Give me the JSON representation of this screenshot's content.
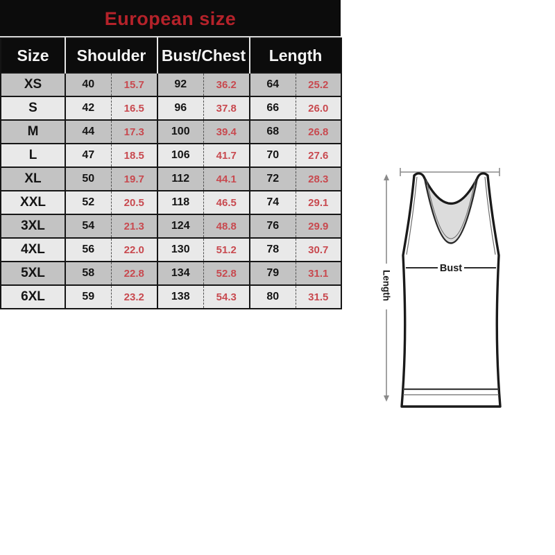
{
  "title": "European size",
  "chart_data": {
    "type": "table",
    "title": "European size",
    "columns": [
      "Size",
      "Shoulder",
      "Bust/Chest",
      "Length"
    ],
    "rows": [
      {
        "size": "XS",
        "shoulder_cm": "40",
        "shoulder_in": "15.7",
        "bust_cm": "92",
        "bust_in": "36.2",
        "length_cm": "64",
        "length_in": "25.2"
      },
      {
        "size": "S",
        "shoulder_cm": "42",
        "shoulder_in": "16.5",
        "bust_cm": "96",
        "bust_in": "37.8",
        "length_cm": "66",
        "length_in": "26.0"
      },
      {
        "size": "M",
        "shoulder_cm": "44",
        "shoulder_in": "17.3",
        "bust_cm": "100",
        "bust_in": "39.4",
        "length_cm": "68",
        "length_in": "26.8"
      },
      {
        "size": "L",
        "shoulder_cm": "47",
        "shoulder_in": "18.5",
        "bust_cm": "106",
        "bust_in": "41.7",
        "length_cm": "70",
        "length_in": "27.6"
      },
      {
        "size": "XL",
        "shoulder_cm": "50",
        "shoulder_in": "19.7",
        "bust_cm": "112",
        "bust_in": "44.1",
        "length_cm": "72",
        "length_in": "28.3"
      },
      {
        "size": "XXL",
        "shoulder_cm": "52",
        "shoulder_in": "20.5",
        "bust_cm": "118",
        "bust_in": "46.5",
        "length_cm": "74",
        "length_in": "29.1"
      },
      {
        "size": "3XL",
        "shoulder_cm": "54",
        "shoulder_in": "21.3",
        "bust_cm": "124",
        "bust_in": "48.8",
        "length_cm": "76",
        "length_in": "29.9"
      },
      {
        "size": "4XL",
        "shoulder_cm": "56",
        "shoulder_in": "22.0",
        "bust_cm": "130",
        "bust_in": "51.2",
        "length_cm": "78",
        "length_in": "30.7"
      },
      {
        "size": "5XL",
        "shoulder_cm": "58",
        "shoulder_in": "22.8",
        "bust_cm": "134",
        "bust_in": "52.8",
        "length_cm": "79",
        "length_in": "31.1"
      },
      {
        "size": "6XL",
        "shoulder_cm": "59",
        "shoulder_in": "23.2",
        "bust_cm": "138",
        "bust_in": "54.3",
        "length_cm": "80",
        "length_in": "31.5"
      }
    ]
  },
  "diagram": {
    "length_label": "Length",
    "bust_label": "Bust"
  },
  "colors": {
    "title_red": "#b5222a",
    "inch_red": "#c8494f",
    "header_bg": "#0c0c0c",
    "header_text": "#f5f5f5",
    "row_dark": "#c3c3c3",
    "row_light": "#e9e9e9",
    "neck_shade": "#dcdcdc",
    "measure_line": "#8a8a8a"
  }
}
